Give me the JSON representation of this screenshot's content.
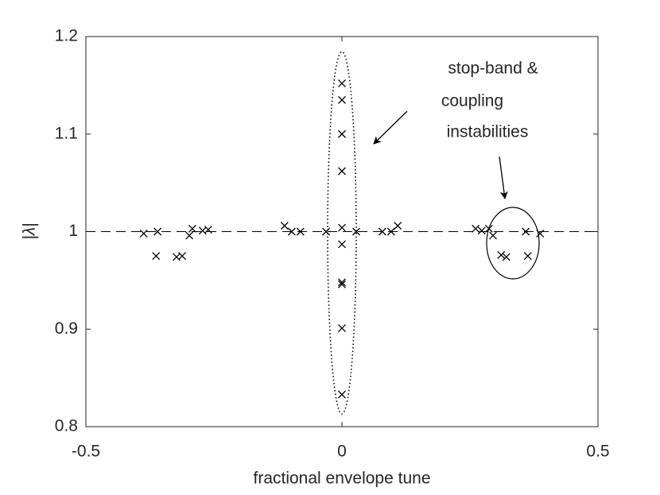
{
  "chart_data": {
    "type": "scatter",
    "x_label": "fractional envelope tune",
    "y_label": "|λ|",
    "annotation": [
      "stop-band &",
      "coupling",
      "instabilities"
    ],
    "xlim": [
      -0.5,
      0.5
    ],
    "ylim": [
      0.8,
      1.2
    ],
    "xticks": [
      -0.5,
      0,
      0.5
    ],
    "yticks": [
      0.8,
      0.9,
      1,
      1.1,
      1.2
    ],
    "reference_line": 1,
    "color": "#000000",
    "x": [
      -0.387,
      -0.36,
      -0.363,
      -0.323,
      -0.312,
      -0.298,
      -0.292,
      -0.272,
      -0.261,
      -0.112,
      -0.098,
      -0.081,
      -0.031,
      0,
      0,
      0,
      0,
      0,
      0,
      0,
      0,
      0,
      0,
      0.028,
      0.079,
      0.096,
      0.109,
      0.261,
      0.273,
      0.287,
      0.295,
      0.311,
      0.321,
      0.359,
      0.363,
      0.387
    ],
    "values": [
      0.998,
      1.0,
      0.975,
      0.974,
      0.975,
      0.996,
      1.003,
      1.001,
      1.002,
      1.006,
      1.0,
      1.0,
      1.0,
      1.152,
      1.135,
      1.1,
      1.062,
      1.004,
      0.987,
      0.948,
      0.946,
      0.901,
      0.833,
      1.0,
      1.0,
      1.0,
      1.006,
      1.003,
      1.001,
      1.003,
      0.996,
      0.976,
      0.974,
      1.0,
      0.975,
      0.998
    ]
  }
}
